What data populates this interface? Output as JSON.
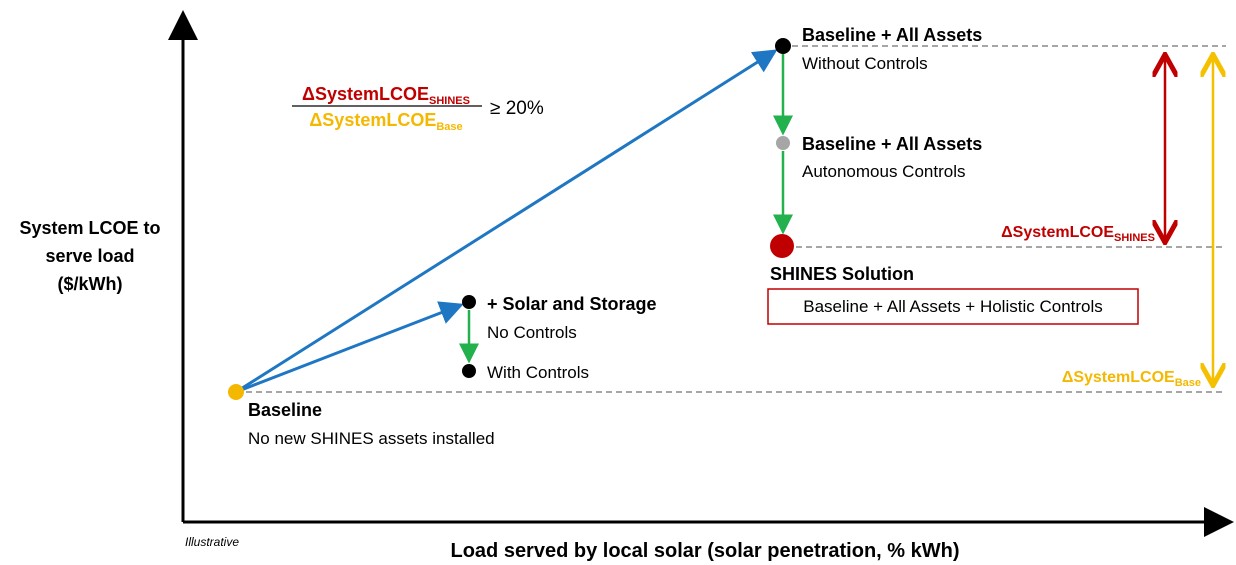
{
  "axes": {
    "y_label": [
      "System LCOE to",
      "serve load",
      "($/kWh)"
    ],
    "x_label": "Load served by local solar (solar penetration, % kWh)",
    "note": "Illustrative"
  },
  "nodes": [
    {
      "title": "Baseline",
      "subtitle": "No new SHINES assets installed"
    },
    {
      "title": "+ Solar and Storage",
      "subtitle": "No Controls"
    },
    {
      "subtitle": "With Controls"
    },
    {
      "title": "Baseline + All Assets",
      "subtitle": "Without Controls"
    },
    {
      "title": "Baseline + All Assets",
      "subtitle": "Autonomous Controls"
    },
    {
      "title": "SHINES Solution",
      "subtitle": "Baseline + All Assets + Holistic Controls"
    }
  ],
  "ratio": {
    "numerator": "ΔSystemLCOE",
    "numerator_sub": "SHINES",
    "denominator": "ΔSystemLCOE",
    "denominator_sub": "Base",
    "condition": "≥ 20%"
  },
  "deltas": {
    "shines": "ΔSystemLCOE",
    "shines_sub": "SHINES",
    "base": "ΔSystemLCOE",
    "base_sub": "Base"
  }
}
